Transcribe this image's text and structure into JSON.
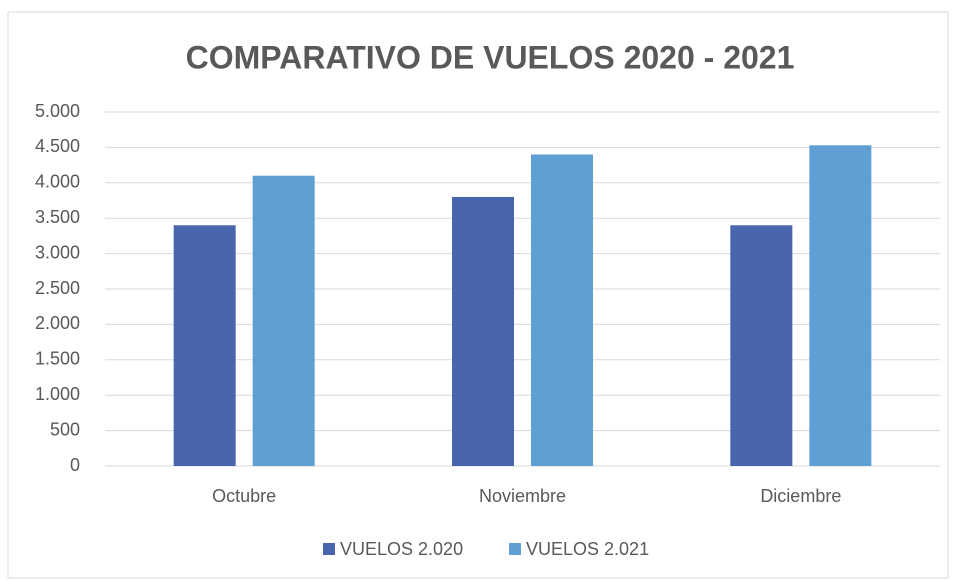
{
  "chart_data": {
    "type": "bar",
    "title": "COMPARATIVO DE VUELOS 2020 - 2021",
    "categories": [
      "Octubre",
      "Noviembre",
      "Diciembre"
    ],
    "series": [
      {
        "name": "VUELOS 2.020",
        "color": "#4865ae",
        "values": [
          3400,
          3800,
          3400
        ]
      },
      {
        "name": "VUELOS 2.021",
        "color": "#5f9fd3",
        "values": [
          4100,
          4400,
          4530
        ]
      }
    ],
    "ylim": [
      0,
      5000
    ],
    "yticks": [
      0,
      500,
      {
        "value": 1000,
        "label": "1.000"
      },
      {
        "value": 1500,
        "label": "1.500"
      },
      {
        "value": 2000,
        "label": "2.000"
      },
      {
        "value": 2500,
        "label": "2.500"
      },
      {
        "value": 3000,
        "label": "3.000"
      },
      {
        "value": 3500,
        "label": "3.500"
      },
      {
        "value": 4000,
        "label": "4.000"
      },
      {
        "value": 4500,
        "label": "4.500"
      },
      {
        "value": 5000,
        "label": "5.000"
      }
    ],
    "grid": true,
    "legend": "bottom"
  }
}
